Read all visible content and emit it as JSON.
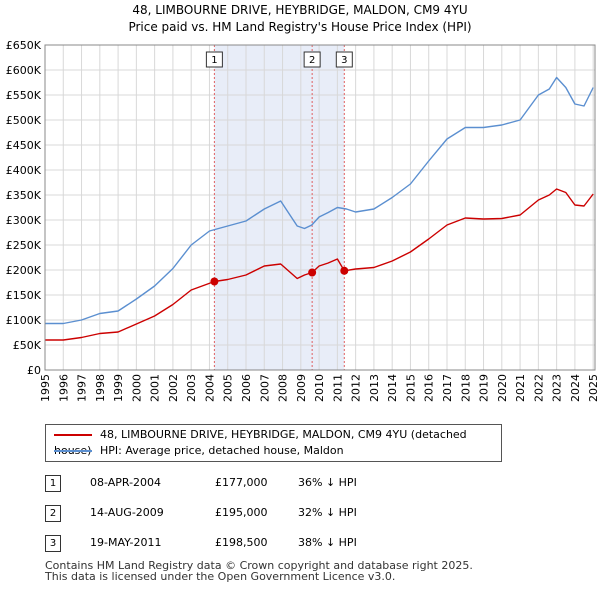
{
  "header": {
    "title_line1": "48, LIMBOURNE DRIVE, HEYBRIDGE, MALDON, CM9 4YU",
    "title_line2": "Price paid vs. HM Land Registry's House Price Index (HPI)"
  },
  "chart_data": {
    "type": "line",
    "title": "48, LIMBOURNE DRIVE, HEYBRIDGE, MALDON, CM9 4YU — Price paid vs. HM Land Registry's House Price Index (HPI)",
    "xlabel": "",
    "ylabel": "",
    "xlim": [
      1995,
      2025.1
    ],
    "ylim": [
      0,
      650000
    ],
    "y_ticks": [
      {
        "value": 0,
        "label": "£0"
      },
      {
        "value": 50000,
        "label": "£50K"
      },
      {
        "value": 100000,
        "label": "£100K"
      },
      {
        "value": 150000,
        "label": "£150K"
      },
      {
        "value": 200000,
        "label": "£200K"
      },
      {
        "value": 250000,
        "label": "£250K"
      },
      {
        "value": 300000,
        "label": "£300K"
      },
      {
        "value": 350000,
        "label": "£350K"
      },
      {
        "value": 400000,
        "label": "£400K"
      },
      {
        "value": 450000,
        "label": "£450K"
      },
      {
        "value": 500000,
        "label": "£500K"
      },
      {
        "value": 550000,
        "label": "£550K"
      },
      {
        "value": 600000,
        "label": "£600K"
      },
      {
        "value": 650000,
        "label": "£650K"
      }
    ],
    "x_ticks": [
      "1995",
      "1996",
      "1997",
      "1998",
      "1999",
      "2000",
      "2001",
      "2002",
      "2003",
      "2004",
      "2005",
      "2006",
      "2007",
      "2008",
      "2009",
      "2010",
      "2011",
      "2012",
      "2013",
      "2014",
      "2015",
      "2016",
      "2017",
      "2018",
      "2019",
      "2020",
      "2021",
      "2022",
      "2023",
      "2024",
      "2025"
    ],
    "grid": true,
    "shaded_span": [
      2004.27,
      2011.38
    ],
    "series": [
      {
        "name": "48, LIMBOURNE DRIVE, HEYBRIDGE, MALDON, CM9 4YU (detached house)",
        "color": "#cc0000",
        "x": [
          1995,
          1996,
          1997,
          1998,
          1999,
          2000,
          2001,
          2002,
          2003,
          2004.27,
          2005,
          2006,
          2007,
          2007.9,
          2008.8,
          2009.2,
          2009.62,
          2010,
          2010.5,
          2011.0,
          2011.38,
          2012,
          2013,
          2014,
          2015,
          2016,
          2017,
          2018,
          2019,
          2020,
          2021,
          2022,
          2022.6,
          2023.0,
          2023.5,
          2024.0,
          2024.5,
          2025
        ],
        "y": [
          60000,
          60000,
          65000,
          73000,
          76000,
          92000,
          108000,
          131000,
          160000,
          177000,
          181000,
          190000,
          208000,
          212000,
          183000,
          190000,
          195000,
          208000,
          214000,
          222000,
          198500,
          202000,
          205000,
          218000,
          236000,
          262000,
          290000,
          304000,
          302000,
          303000,
          310000,
          340000,
          350000,
          362000,
          355000,
          330000,
          328000,
          352000
        ]
      },
      {
        "name": "HPI: Average price, detached house, Maldon",
        "color": "#5b8fd0",
        "x": [
          1995,
          1996,
          1997,
          1998,
          1999,
          2000,
          2001,
          2002,
          2003,
          2004,
          2005,
          2006,
          2007,
          2007.9,
          2008.8,
          2009.2,
          2009.6,
          2010,
          2010.5,
          2011,
          2011.5,
          2012,
          2013,
          2014,
          2015,
          2016,
          2017,
          2018,
          2019,
          2020,
          2021,
          2022,
          2022.6,
          2023.0,
          2023.5,
          2024.0,
          2024.5,
          2025
        ],
        "y": [
          93000,
          93000,
          100000,
          113000,
          118000,
          142000,
          168000,
          203000,
          250000,
          278000,
          288000,
          298000,
          322000,
          338000,
          288000,
          283000,
          290000,
          306000,
          315000,
          325000,
          322000,
          316000,
          322000,
          345000,
          372000,
          418000,
          462000,
          485000,
          485000,
          490000,
          500000,
          550000,
          562000,
          585000,
          565000,
          532000,
          528000,
          565000
        ]
      }
    ],
    "sales": [
      {
        "num": "1",
        "x": 2004.27,
        "y": 177000
      },
      {
        "num": "2",
        "x": 2009.62,
        "y": 195000
      },
      {
        "num": "3",
        "x": 2011.38,
        "y": 198500
      }
    ]
  },
  "legend": {
    "property_label": "48, LIMBOURNE DRIVE, HEYBRIDGE, MALDON, CM9 4YU (detached house)",
    "hpi_label": "HPI: Average price, detached house, Maldon",
    "property_color": "#cc0000",
    "hpi_color": "#5b8fd0"
  },
  "sales_table": [
    {
      "num": "1",
      "date": "08-APR-2004",
      "price": "£177,000",
      "hpi": "36% ↓ HPI"
    },
    {
      "num": "2",
      "date": "14-AUG-2009",
      "price": "£195,000",
      "hpi": "32% ↓ HPI"
    },
    {
      "num": "3",
      "date": "19-MAY-2011",
      "price": "£198,500",
      "hpi": "38% ↓ HPI"
    }
  ],
  "footer": {
    "line1": "Contains HM Land Registry data © Crown copyright and database right 2025.",
    "line2": "This data is licensed under the Open Government Licence v3.0."
  }
}
